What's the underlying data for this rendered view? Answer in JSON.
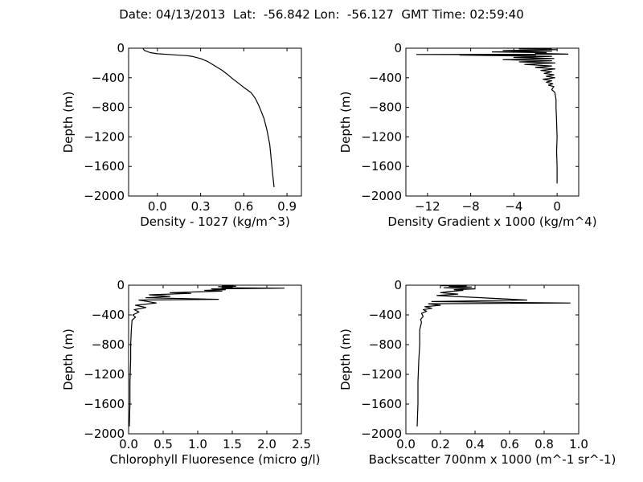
{
  "header": {
    "title": "Date: 04/13/2013  Lat:  -56.842 Lon:  -56.127  GMT Time: 02:59:40"
  },
  "chart_data": [
    {
      "type": "line",
      "id": "density",
      "title": "",
      "xlabel": "Density - 1027 (kg/m^3)",
      "ylabel": "Depth (m)",
      "xlim": [
        -0.2,
        1.0
      ],
      "ylim": [
        -2000,
        0
      ],
      "xticks": [
        0.0,
        0.3,
        0.6,
        0.9
      ],
      "xtick_labels": [
        "0.0",
        "0.3",
        "0.6",
        "0.9"
      ],
      "yticks": [
        0,
        -400,
        -800,
        -1200,
        -1600,
        -2000
      ],
      "ytick_labels": [
        "0",
        "−400",
        "−800",
        "−1200",
        "−1600",
        "−2000"
      ],
      "series": [
        {
          "x": [
            -0.1,
            -0.09,
            -0.05,
            0.0,
            0.08,
            0.15,
            0.2,
            0.24,
            0.3,
            0.35,
            0.4,
            0.45,
            0.49,
            0.52,
            0.56,
            0.6,
            0.65,
            0.68,
            0.7,
            0.72,
            0.74,
            0.76,
            0.78,
            0.79,
            0.8,
            0.81
          ],
          "y": [
            -5,
            -30,
            -60,
            -75,
            -85,
            -95,
            -100,
            -110,
            -140,
            -180,
            -240,
            -300,
            -360,
            -410,
            -470,
            -530,
            -600,
            -680,
            -760,
            -850,
            -950,
            -1100,
            -1300,
            -1500,
            -1700,
            -1880
          ]
        }
      ]
    },
    {
      "type": "line",
      "id": "density-gradient",
      "title": "",
      "xlabel": "Density Gradient x 1000 (kg/m^4)",
      "ylabel": "Depth (m)",
      "xlim": [
        -14,
        2
      ],
      "ylim": [
        -2000,
        0
      ],
      "xticks": [
        -12,
        -8,
        -4,
        0
      ],
      "xtick_labels": [
        "−12",
        "−8",
        "−4",
        "0"
      ],
      "yticks": [
        0,
        -400,
        -800,
        -1200,
        -1600,
        -2000
      ],
      "ytick_labels": [
        "0",
        "−400",
        "−800",
        "−1200",
        "−1600",
        "−2000"
      ],
      "series": [
        {
          "x": [
            -0.5,
            -3.5,
            0.0,
            -5.0,
            -0.5,
            -6.0,
            -1.0,
            -2.0,
            1.0,
            -13.0,
            -2.0,
            -9.0,
            -0.5,
            -4.0,
            -0.3,
            -5.0,
            -0.5,
            -3.5,
            -0.2,
            -3.0,
            -0.5,
            -2.0,
            -0.2,
            -1.5,
            -0.5,
            -1.2,
            -0.3,
            -1.0,
            -0.2,
            -1.3,
            -0.5,
            -1.0,
            -0.4,
            -0.8,
            -0.3,
            -0.5,
            -0.2,
            -0.1,
            -0.1,
            -0.05,
            0.0,
            -0.05,
            0.0,
            0.0
          ],
          "y": [
            -5,
            -10,
            -20,
            -30,
            -40,
            -50,
            -60,
            -70,
            -80,
            -85,
            -90,
            -95,
            -110,
            -125,
            -140,
            -155,
            -170,
            -185,
            -200,
            -220,
            -240,
            -260,
            -280,
            -300,
            -320,
            -340,
            -360,
            -380,
            -400,
            -420,
            -440,
            -460,
            -480,
            -500,
            -520,
            -560,
            -600,
            -700,
            -800,
            -1000,
            -1200,
            -1400,
            -1600,
            -1830
          ]
        }
      ]
    },
    {
      "type": "line",
      "id": "chlorophyll",
      "title": "",
      "xlabel": "Chlorophyll Fluoresence (micro g/l)",
      "ylabel": "Depth (m)",
      "xlim": [
        0.0,
        2.5
      ],
      "ylim": [
        -2000,
        0
      ],
      "xticks": [
        0.0,
        0.5,
        1.0,
        1.5,
        2.0,
        2.5
      ],
      "xtick_labels": [
        "0.0",
        "0.5",
        "1.0",
        "1.5",
        "2.0",
        "2.5"
      ],
      "yticks": [
        0,
        -400,
        -800,
        -1200,
        -1600,
        -2000
      ],
      "ytick_labels": [
        "0",
        "−400",
        "−800",
        "−1200",
        "−1600",
        "−2000"
      ],
      "series": [
        {
          "x": [
            1.35,
            1.55,
            1.3,
            1.5,
            1.35,
            2.25,
            1.2,
            1.4,
            1.1,
            1.35,
            0.6,
            0.9,
            0.3,
            0.6,
            0.25,
            1.3,
            0.15,
            0.4,
            0.1,
            0.25,
            0.08,
            0.15,
            0.06,
            0.1,
            0.05,
            0.04,
            0.03,
            0.03,
            0.02,
            0.02,
            0.01
          ],
          "y": [
            -5,
            -15,
            -20,
            -25,
            -35,
            -40,
            -50,
            -60,
            -70,
            -80,
            -100,
            -110,
            -130,
            -150,
            -170,
            -190,
            -200,
            -240,
            -270,
            -300,
            -330,
            -360,
            -400,
            -430,
            -470,
            -600,
            -800,
            -1000,
            -1300,
            -1600,
            -1900
          ]
        }
      ]
    },
    {
      "type": "line",
      "id": "backscatter",
      "title": "",
      "xlabel": "Backscatter 700nm x 1000 (m^-1 sr^-1)",
      "ylabel": "Depth (m)",
      "xlim": [
        0.0,
        1.0
      ],
      "ylim": [
        -2000,
        0
      ],
      "xticks": [
        0.0,
        0.2,
        0.4,
        0.6,
        0.8,
        1.0
      ],
      "xtick_labels": [
        "0.0",
        "0.2",
        "0.4",
        "0.6",
        "0.8",
        "1.0"
      ],
      "yticks": [
        0,
        -400,
        -800,
        -1200,
        -1600,
        -2000
      ],
      "ytick_labels": [
        "0",
        "−400",
        "−800",
        "−1200",
        "−1600",
        "−2000"
      ],
      "series": [
        {
          "x": [
            0.2,
            0.35,
            0.25,
            0.38,
            0.22,
            0.4,
            0.28,
            0.33,
            0.25,
            0.2,
            0.3,
            0.18,
            0.7,
            0.15,
            0.95,
            0.13,
            0.2,
            0.11,
            0.15,
            0.1,
            0.12,
            0.09,
            0.1,
            0.085,
            0.09,
            0.08,
            0.08,
            0.075,
            0.07,
            0.07,
            0.065
          ],
          "y": [
            -5,
            -10,
            -15,
            -25,
            -35,
            -50,
            -60,
            -70,
            -85,
            -100,
            -120,
            -140,
            -200,
            -220,
            -240,
            -250,
            -270,
            -290,
            -310,
            -330,
            -350,
            -380,
            -420,
            -460,
            -500,
            -600,
            -800,
            -1000,
            -1300,
            -1600,
            -1900
          ]
        }
      ]
    }
  ]
}
